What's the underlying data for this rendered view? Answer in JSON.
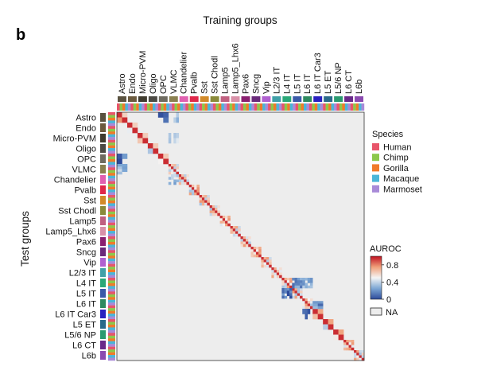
{
  "panel_label": "b",
  "chart_data": {
    "type": "heatmap",
    "title": "",
    "xlabel": "Training groups",
    "ylabel": "Test groups",
    "groups": [
      "Astro",
      "Endo",
      "Micro-PVM",
      "Oligo",
      "OPC",
      "VLMC",
      "Chandelier",
      "Pvalb",
      "Sst",
      "Sst Chodl",
      "Lamp5",
      "Lamp5_Lhx6",
      "Pax6",
      "Sncg",
      "Vip",
      "L2/3 IT",
      "L4 IT",
      "L5 IT",
      "L6 IT",
      "L6 IT Car3",
      "L5 ET",
      "L5/6 NP",
      "L6 CT",
      "L6b"
    ],
    "group_colors": [
      "#5a5240",
      "#6b5a3e",
      "#3f3b2e",
      "#4c4a44",
      "#6f6b60",
      "#8a8050",
      "#e060b0",
      "#e0284a",
      "#d28a2a",
      "#8a8a3a",
      "#c06080",
      "#d890a8",
      "#8a2070",
      "#6a2a7a",
      "#b060d0",
      "#40a0a8",
      "#2aa878",
      "#3a5aa8",
      "#2e8a60",
      "#2a20c0",
      "#2a6a8a",
      "#2a9a70",
      "#6a2a8a",
      "#8a4ab0"
    ],
    "subclusters_per_group": [
      2,
      2,
      2,
      2,
      2,
      4,
      4,
      4,
      4,
      4,
      4,
      4,
      4,
      4,
      4,
      4,
      4,
      4,
      4,
      2,
      2,
      2,
      4,
      4
    ],
    "species_legend": {
      "title": "Species",
      "items": [
        {
          "name": "Human",
          "color": "#e8556a"
        },
        {
          "name": "Chimp",
          "color": "#8cc84b"
        },
        {
          "name": "Gorilla",
          "color": "#f07a2a"
        },
        {
          "name": "Macaque",
          "color": "#4ab6d8"
        },
        {
          "name": "Marmoset",
          "color": "#a88ad8"
        }
      ]
    },
    "colorbar": {
      "title": "AUROC",
      "range": [
        0,
        1
      ],
      "ticks": [
        {
          "value": 0.8,
          "label": "0.8"
        },
        {
          "value": 0.4,
          "label": "0.4"
        },
        {
          "value": 0.0,
          "label": "0"
        }
      ],
      "colormap": [
        "#2c4a9a",
        "#7da7d4",
        "#f4f4f4",
        "#f0a07a",
        "#c01020"
      ]
    },
    "na_label": "NA",
    "na_color": "#ededed",
    "diagonal_block_auroc": 0.95,
    "within_class_offdiag_auroc": 0.55,
    "extra_blocks": [
      {
        "test": "Astro",
        "train": "OPC",
        "auroc": 0.1
      },
      {
        "test": "Astro",
        "train": "VLMC",
        "auroc": 0.3
      },
      {
        "test": "OPC",
        "train": "Astro",
        "auroc": 0.1
      },
      {
        "test": "VLMC",
        "train": "Astro",
        "auroc": 0.3
      },
      {
        "test": "Micro-PVM",
        "train": "VLMC",
        "auroc": 0.4
      },
      {
        "test": "Chandelier",
        "train": "VLMC",
        "auroc": 0.3
      },
      {
        "test": "L4 IT",
        "train": "L5 IT",
        "auroc": 0.2
      },
      {
        "test": "L4 IT",
        "train": "L6 IT",
        "auroc": 0.3
      },
      {
        "test": "L5 IT",
        "train": "L4 IT",
        "auroc": 0.1
      },
      {
        "test": "L6 IT",
        "train": "L6 IT Car3",
        "auroc": 0.2
      },
      {
        "test": "L6 IT Car3",
        "train": "L6 IT",
        "auroc": 0.1
      }
    ]
  }
}
